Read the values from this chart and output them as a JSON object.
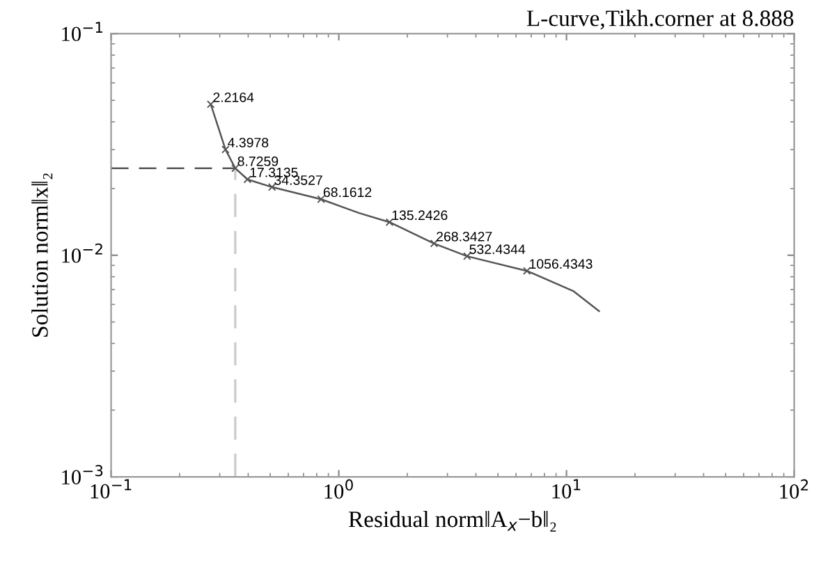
{
  "chart_data": {
    "type": "line",
    "title": "L-curve,Tikh.corner at 8.888",
    "xlabel": "Residual norm‖A$_{x}$−b‖₂",
    "ylabel": "Solution norm‖x‖₂",
    "log": "xy",
    "grid": false,
    "xlim": [
      0.1,
      100
    ],
    "ylim": [
      0.001,
      0.1
    ],
    "xticks": [
      {
        "value": 0.1,
        "label": "10$^{−1}$"
      },
      {
        "value": 1,
        "label": "10$^{0}$"
      },
      {
        "value": 10,
        "label": "10$^{1}$"
      },
      {
        "value": 100,
        "label": "10$^{2}$"
      }
    ],
    "yticks": [
      {
        "value": 0.001,
        "label": "10$^{−3}$"
      },
      {
        "value": 0.01,
        "label": "10$^{−2}$"
      },
      {
        "value": 0.1,
        "label": "10$^{−1}$"
      }
    ],
    "series": [
      {
        "color": "#555555",
        "marker": "none",
        "x": [
          0.274,
          0.318,
          0.351,
          0.397,
          0.509,
          0.836,
          1.23,
          1.67,
          2.62,
          3.66,
          6.7,
          10.7,
          13.9
        ],
        "values": [
          0.048,
          0.03,
          0.0247,
          0.022,
          0.0203,
          0.0179,
          0.0155,
          0.0141,
          0.0113,
          0.0099,
          0.0085,
          0.0069,
          0.0056
        ]
      },
      {
        "type": "scatter",
        "color": "#555555",
        "marker": "cross",
        "x": [
          0.274,
          0.318,
          0.351,
          0.397,
          0.509,
          0.836,
          1.67,
          2.62,
          3.66,
          6.7
        ],
        "values": [
          0.048,
          0.03,
          0.0247,
          0.022,
          0.0203,
          0.0179,
          0.0141,
          0.0113,
          0.0099,
          0.0085
        ]
      }
    ],
    "annotations": [
      {
        "text": "2.2164",
        "x": 0.274,
        "y": 0.048
      },
      {
        "text": "4.3978",
        "x": 0.318,
        "y": 0.03
      },
      {
        "text": "8.7259",
        "x": 0.351,
        "y": 0.0247
      },
      {
        "text": "17.3135",
        "x": 0.397,
        "y": 0.022
      },
      {
        "text": "34.3527",
        "x": 0.509,
        "y": 0.0203
      },
      {
        "text": "68.1612",
        "x": 0.836,
        "y": 0.0179
      },
      {
        "text": "135.2426",
        "x": 1.67,
        "y": 0.0141
      },
      {
        "text": "268.3427",
        "x": 2.62,
        "y": 0.0113
      },
      {
        "text": "532.4344",
        "x": 3.66,
        "y": 0.0099
      },
      {
        "text": "1056.4343",
        "x": 6.7,
        "y": 0.0085
      }
    ],
    "ref_lines": [
      {
        "axis": "x",
        "value": 0.351,
        "color": "#cccccc",
        "line_style": "dashed"
      },
      {
        "axis": "y",
        "value": 0.0247,
        "color": "#555555",
        "line_style": "dashed"
      }
    ]
  }
}
